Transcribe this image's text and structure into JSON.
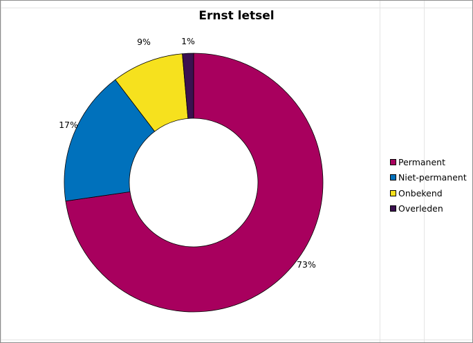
{
  "chart_data": {
    "type": "pie",
    "subtype": "doughnut",
    "title": "Ernst letsel",
    "legend_position": "right",
    "slices": [
      {
        "name": "Permanent",
        "value": 73,
        "label": "73%",
        "color": "#a8005e"
      },
      {
        "name": "Niet-permanent",
        "value": 17,
        "label": "17%",
        "color": "#0071bc"
      },
      {
        "name": "Onbekend",
        "value": 9,
        "label": "9%",
        "color": "#f6e11e"
      },
      {
        "name": "Overleden",
        "value": 1.4,
        "label": "1%",
        "color": "#3b1150"
      }
    ]
  }
}
